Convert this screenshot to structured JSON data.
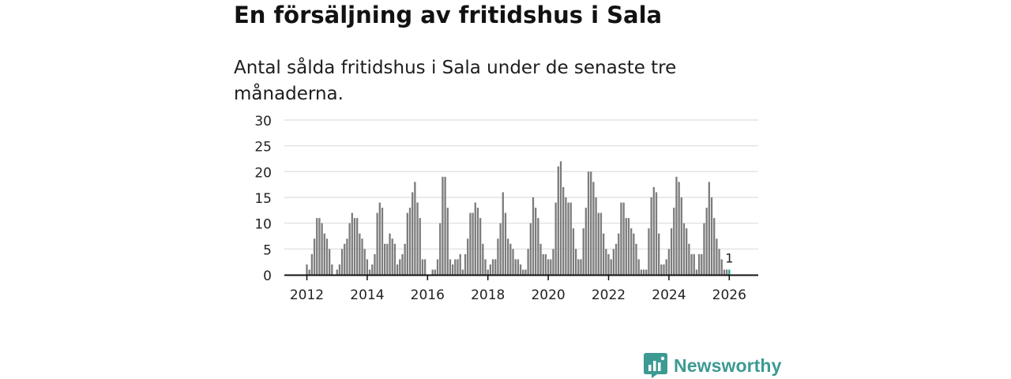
{
  "headline": "En försäljning av fritidshus i Sala",
  "subtitle": "Antal sålda fritidshus i Sala under de senaste tre månaderna.",
  "brand": {
    "name": "Newsworthy",
    "icon": "newsworthy-logo-icon"
  },
  "colors": {
    "bar": "#7c7c7c",
    "highlight": "#2aa198",
    "brand": "#3c9a93",
    "axis": "#111111",
    "grid": "#dddddd"
  },
  "chart_data": {
    "type": "bar",
    "title": "",
    "xlabel": "",
    "ylabel": "",
    "ylim": [
      0,
      30
    ],
    "yticks": [
      0,
      5,
      10,
      15,
      20,
      25,
      30
    ],
    "xticks": [
      "2012",
      "2014",
      "2016",
      "2018",
      "2020",
      "2022",
      "2024",
      "2026"
    ],
    "grid": true,
    "x_start": "2012-01",
    "x_end": "2026-02",
    "highlight_label": "1",
    "values": [
      2,
      1,
      4,
      7,
      11,
      11,
      10,
      8,
      7,
      5,
      2,
      0,
      1,
      2,
      5,
      6,
      7,
      10,
      12,
      11,
      11,
      8,
      7,
      5,
      3,
      1,
      2,
      4,
      12,
      14,
      13,
      6,
      6,
      8,
      7,
      6,
      2,
      3,
      4,
      6,
      12,
      13,
      16,
      18,
      14,
      11,
      3,
      3,
      0,
      0,
      1,
      1,
      3,
      10,
      19,
      19,
      13,
      3,
      2,
      3,
      3,
      4,
      1,
      4,
      7,
      12,
      12,
      14,
      13,
      11,
      6,
      3,
      1,
      2,
      3,
      3,
      7,
      10,
      16,
      12,
      7,
      6,
      5,
      3,
      3,
      2,
      1,
      1,
      5,
      10,
      15,
      13,
      11,
      6,
      4,
      4,
      3,
      3,
      5,
      14,
      21,
      22,
      17,
      15,
      14,
      14,
      9,
      5,
      3,
      3,
      9,
      13,
      20,
      20,
      18,
      15,
      12,
      12,
      8,
      5,
      4,
      3,
      5,
      6,
      8,
      14,
      14,
      11,
      11,
      9,
      8,
      6,
      3,
      1,
      1,
      1,
      9,
      15,
      17,
      16,
      8,
      2,
      2,
      3,
      5,
      9,
      13,
      19,
      18,
      15,
      10,
      9,
      6,
      4,
      4,
      1,
      4,
      4,
      10,
      13,
      18,
      15,
      11,
      7,
      5,
      3,
      1,
      1
    ]
  }
}
